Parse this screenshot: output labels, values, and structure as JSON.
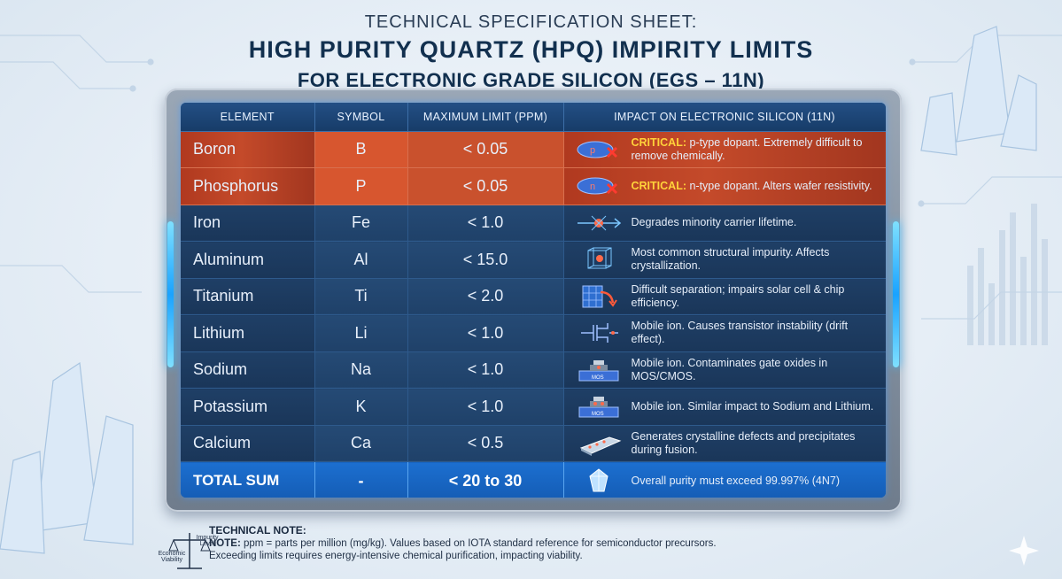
{
  "header": {
    "subtitle": "TECHNICAL SPECIFICATION SHEET:",
    "title_line1": "HIGH PURITY QUARTZ (HPQ) IMPIRITY LIMITS",
    "title_line2": "FOR ELECTRONIC GRADE SILICON (EGS – 11N)"
  },
  "table": {
    "columns": [
      "ELEMENT",
      "SYMBOL",
      "MAXIMUM LIMIT (ppm)",
      "IMPACT ON ELECTRONIC SILICON (11N)"
    ],
    "rows": [
      {
        "element": "Boron",
        "symbol": "B",
        "limit": "< 0.05",
        "critical_label": "CRITICAL:",
        "impact": " p-type dopant. Extremely difficult to remove chemically.",
        "icon": "p-type-dopant-icon",
        "icon_text": "p"
      },
      {
        "element": "Phosphorus",
        "symbol": "P",
        "limit": "< 0.05",
        "critical_label": "CRITICAL:",
        "impact": " n-type dopant. Alters wafer resistivity.",
        "icon": "n-type-dopant-icon",
        "icon_text": "n"
      },
      {
        "element": "Iron",
        "symbol": "Fe",
        "limit": "< 1.0",
        "impact": "Degrades minority carrier lifetime.",
        "icon": "carrier-recombination-icon"
      },
      {
        "element": "Aluminum",
        "symbol": "Al",
        "limit": "< 15.0",
        "impact": "Most common structural impurity. Affects crystallization.",
        "icon": "crystal-lattice-icon"
      },
      {
        "element": "Titanium",
        "symbol": "Ti",
        "limit": "< 2.0",
        "impact": "Difficult separation; impairs solar cell & chip efficiency.",
        "icon": "solar-cell-icon"
      },
      {
        "element": "Lithium",
        "symbol": "Li",
        "limit": "< 1.0",
        "impact": "Mobile ion. Causes transistor instability (drift effect).",
        "icon": "transistor-icon"
      },
      {
        "element": "Sodium",
        "symbol": "Na",
        "limit": "< 1.0",
        "impact": "Mobile ion. Contaminates gate oxides in MOS/CMOS.",
        "icon": "mos-gate-icon",
        "icon_text": "MOS"
      },
      {
        "element": "Potassium",
        "symbol": "K",
        "limit": "< 1.0",
        "impact": "Mobile ion. Similar impact to Sodium and Lithium.",
        "icon": "mos-gate-ion-icon",
        "icon_text": "MOS"
      },
      {
        "element": "Calcium",
        "symbol": "Ca",
        "limit": "< 0.5",
        "impact": "Generates crystalline defects and precipitates during fusion.",
        "icon": "silicon-ingot-icon"
      }
    ],
    "total": {
      "element": "TOTAL SUM",
      "symbol": "-",
      "limit": "< 20 to 30",
      "impact": "Overall purity must exceed 99.997% (4N7)",
      "icon": "crystal-gem-icon"
    }
  },
  "note": {
    "title": "TECHNICAL NOTE:",
    "label": "NOTE:",
    "line1": " ppm = parts per million (mg/kg). Values based on IOTA standard reference for semiconductor precursors.",
    "line2": "Exceeding limits requires energy-intensive chemical purification, impacting viability.",
    "scale_left": "Economic Viability",
    "scale_right": "Impurity Level"
  },
  "colors": {
    "critical": "#c44a2a",
    "table_bg": "#1a3659",
    "total": "#1c6fd0",
    "highlight": "#ffd23a"
  }
}
